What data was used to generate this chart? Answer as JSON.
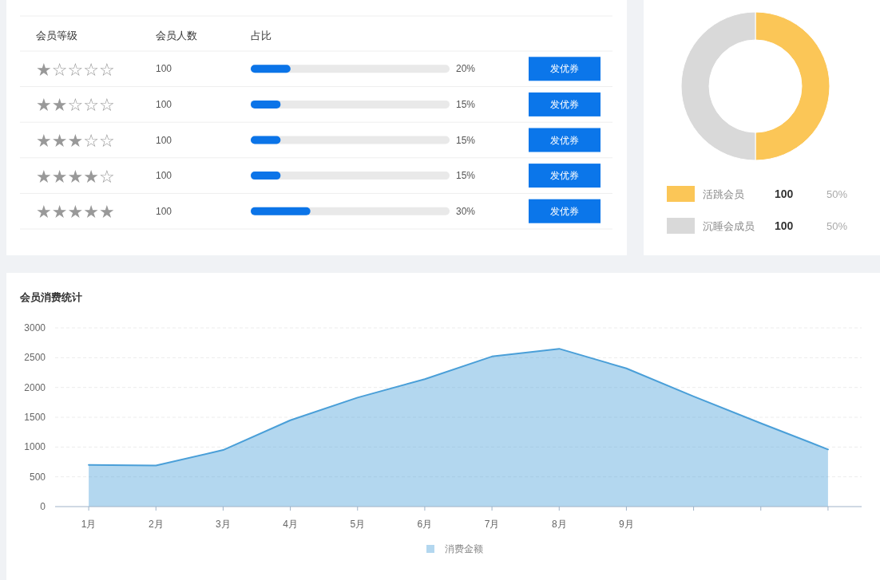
{
  "chart_data": [
    {
      "type": "bar",
      "orientation": "horizontal",
      "ylabel": "会员等级",
      "xlabel": "占比",
      "categories": [
        "★☆☆☆☆",
        "★★☆☆☆",
        "★★★☆☆",
        "★★★★☆",
        "★★★★★"
      ],
      "values": [
        20,
        15,
        15,
        15,
        30
      ],
      "color": "#0b74e8",
      "value_labels": [
        "20%",
        "15%",
        "15%",
        "15%",
        "30%"
      ],
      "xlim": [
        0,
        100
      ],
      "annotations": [
        "会员人数",
        "100",
        "100",
        "100",
        "100",
        "100",
        "发优券",
        "发优券",
        "发优券",
        "发优券",
        "发优券"
      ]
    },
    {
      "type": "donut",
      "categories": [
        "活跳会员",
        "沉睡会成员"
      ],
      "values": [
        100,
        100
      ],
      "colors": [
        "#fbc657",
        "#d9d9d9"
      ],
      "data_labels": true,
      "annotations": [
        "50%",
        "50%"
      ],
      "legend": "bottom"
    },
    {
      "type": "area",
      "title": "会员消费统计",
      "categories": [
        "1月",
        "2月",
        "3月",
        "4月",
        "5月",
        "6月",
        "7月",
        "8月",
        "9月",
        null,
        null,
        null
      ],
      "series": [
        {
          "name": "消费金额",
          "color": "#4a9fd8",
          "values": [
            700,
            690,
            950,
            1450,
            1830,
            2140,
            2520,
            2650,
            2320,
            1850,
            1400,
            960
          ]
        }
      ],
      "ylim": [
        0,
        3000
      ],
      "yticks": [
        0,
        500,
        1000,
        1500,
        2000,
        2500,
        3000
      ],
      "grid": "y",
      "legend": "bottom"
    }
  ]
}
